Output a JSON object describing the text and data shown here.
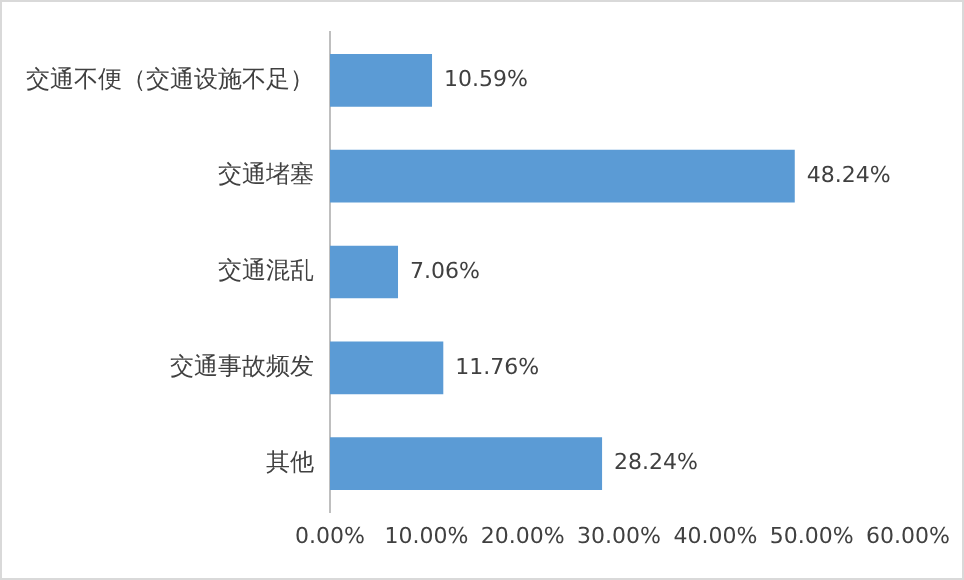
{
  "chart_data": {
    "type": "bar",
    "orientation": "horizontal",
    "categories": [
      "交通不便（交通设施不足）",
      "交通堵塞",
      "交通混乱",
      "交通事故频发",
      "其他"
    ],
    "values": [
      10.59,
      48.24,
      7.06,
      11.76,
      28.24
    ],
    "value_labels": [
      "10.59%",
      "48.24%",
      "7.06%",
      "11.76%",
      "28.24%"
    ],
    "color": "#5b9bd5",
    "xlim": [
      0,
      60
    ],
    "xticks": [
      {
        "value": 0,
        "label": "0.00%"
      },
      {
        "value": 10,
        "label": "10.00%"
      },
      {
        "value": 20,
        "label": "20.00%"
      },
      {
        "value": 30,
        "label": "30.00%"
      },
      {
        "value": 40,
        "label": "40.00%"
      },
      {
        "value": 50,
        "label": "50.00%"
      },
      {
        "value": 60,
        "label": "60.00%"
      }
    ],
    "grid": false,
    "legend": false
  }
}
